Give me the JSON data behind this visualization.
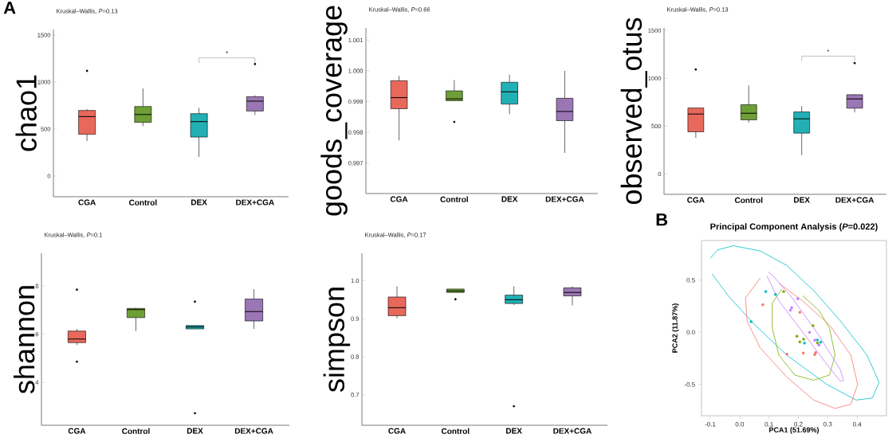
{
  "chart_data": [
    {
      "type": "box",
      "title": "Kruskal–Wallis, *P*=0.13",
      "ylabel": "chao1",
      "categories": [
        "CGA",
        "Control",
        "DEX",
        "DEX+CGA"
      ],
      "colors": [
        "#e8685c",
        "#6e9f36",
        "#22b0b5",
        "#9b76b4"
      ],
      "boxes": [
        {
          "low": 373,
          "q1": 444,
          "median": 633,
          "q3": 698,
          "high": 712,
          "outliers": [
            1119
          ]
        },
        {
          "low": 531,
          "q1": 571,
          "median": 655,
          "q3": 740,
          "high": 932
        },
        {
          "low": 203,
          "q1": 415,
          "median": 579,
          "q3": 664,
          "high": 726
        },
        {
          "low": 650,
          "q1": 692,
          "median": 797,
          "q3": 845,
          "high": 859,
          "outliers": [
            1192
          ]
        }
      ],
      "ylim": [
        -220,
        1560
      ],
      "yticks": [
        0,
        500,
        1000,
        1500
      ],
      "annotations": [
        "A",
        "*"
      ]
    },
    {
      "type": "box",
      "title": "Kruskal–Wallis, *P*=0.66",
      "ylabel": "goods_coverage",
      "categories": [
        "CGA",
        "Control",
        "DEX",
        "DEX+CGA"
      ],
      "colors": [
        "#e8685c",
        "#6e9f36",
        "#22b0b5",
        "#9b76b4"
      ],
      "boxes": [
        {
          "low": 0.99774,
          "q1": 0.99877,
          "median": 0.99913,
          "q3": 0.99968,
          "high": 0.99984
        },
        {
          "low": 0.99903,
          "q1": 0.99903,
          "median": 0.99909,
          "q3": 0.99935,
          "high": 0.9997,
          "outliers": [
            0.99834
          ]
        },
        {
          "low": 0.99859,
          "q1": 0.99892,
          "median": 0.99932,
          "q3": 0.99963,
          "high": 0.99988
        },
        {
          "low": 0.99733,
          "q1": 0.99838,
          "median": 0.99868,
          "q3": 0.99911,
          "high": 1.0
        }
      ],
      "ylim": [
        0.99601,
        1.0014
      ],
      "yticks": [
        {
          "value": 0.997,
          "label": "0.997"
        },
        {
          "value": 0.998,
          "label": "0.998"
        },
        {
          "value": 0.999,
          "label": "0.999"
        },
        {
          "value": 1.0,
          "label": "1.000"
        },
        {
          "value": 1.001,
          "label": "1.001"
        }
      ]
    },
    {
      "type": "box",
      "title": "Kruskal–Wallis, *P*=0.13",
      "ylabel": "observed_otus",
      "categories": [
        "CGA",
        "Control",
        "DEX",
        "DEX+CGA"
      ],
      "colors": [
        "#e8685c",
        "#6e9f36",
        "#22b0b5",
        "#9b76b4"
      ],
      "boxes": [
        {
          "low": 377,
          "q1": 441,
          "median": 627,
          "q3": 690,
          "high": 690,
          "outliers": [
            1093
          ]
        },
        {
          "low": 538,
          "q1": 566,
          "median": 635,
          "q3": 724,
          "high": 926
        },
        {
          "low": 197,
          "q1": 427,
          "median": 577,
          "q3": 649,
          "high": 710
        },
        {
          "low": 644,
          "q1": 688,
          "median": 785,
          "q3": 829,
          "high": 835,
          "outliers": [
            1159
          ]
        }
      ],
      "ylim": [
        -213,
        1528
      ],
      "yticks": [
        0,
        500,
        1000,
        1500
      ],
      "annotations": [
        "*"
      ]
    },
    {
      "type": "box",
      "title": "Kruskal–Wallis, *P*=0.1",
      "ylabel": "shannon",
      "categories": [
        "CGA",
        "Control",
        "DEX",
        "DEX+CGA"
      ],
      "colors": [
        "#e8685c",
        "#6e9f36",
        "#22b0b5",
        "#9b76b4"
      ],
      "boxes": [
        {
          "low": 5.55,
          "q1": 5.65,
          "median": 5.8,
          "q3": 6.13,
          "high": 6.22,
          "outliers": [
            7.85,
            4.86
          ]
        },
        {
          "low": 6.13,
          "q1": 6.69,
          "median": 7.02,
          "q3": 7.07,
          "high": 7.1
        },
        {
          "low": 6.22,
          "q1": 6.22,
          "median": 6.3,
          "q3": 6.36,
          "high": 6.36,
          "outliers": [
            7.35,
            2.72
          ]
        },
        {
          "low": 6.22,
          "q1": 6.55,
          "median": 6.94,
          "q3": 7.46,
          "high": 7.87
        }
      ],
      "ylim": [
        2.22,
        9.36
      ],
      "yticks": [
        4,
        6,
        8
      ]
    },
    {
      "type": "box",
      "title": "Kruskal–Wallis, *P*=0.17",
      "ylabel": "simpson",
      "categories": [
        "CGA",
        "Control",
        "DEX",
        "DEX+CGA"
      ],
      "colors": [
        "#e8685c",
        "#6e9f36",
        "#22b0b5",
        "#9b76b4"
      ],
      "boxes": [
        {
          "low": 0.901,
          "q1": 0.908,
          "median": 0.929,
          "q3": 0.957,
          "high": 0.985
        },
        {
          "low": 0.969,
          "q1": 0.969,
          "median": 0.973,
          "q3": 0.978,
          "high": 0.978,
          "outliers": [
            0.951
          ]
        },
        {
          "low": 0.936,
          "q1": 0.94,
          "median": 0.95,
          "q3": 0.962,
          "high": 0.985,
          "outliers": [
            0.67
          ]
        },
        {
          "low": 0.935,
          "q1": 0.96,
          "median": 0.969,
          "q3": 0.981,
          "high": 0.985
        }
      ],
      "ylim": [
        0.62,
        1.072
      ],
      "yticks": [
        {
          "value": 0.7,
          "label": "0.7"
        },
        {
          "value": 0.8,
          "label": "0.8"
        },
        {
          "value": 0.9,
          "label": "0.9"
        },
        {
          "value": 1.0,
          "label": "1.0"
        }
      ]
    },
    {
      "type": "scatter",
      "title": "Principal Component Analysis (*P*=0.022)",
      "xlabel": "PCA1 (51.69%)",
      "ylabel": "PCA2 (11.87%)",
      "annotations": [
        "B"
      ],
      "xlim": [
        -0.13,
        0.5
      ],
      "ylim": [
        -0.8,
        0.88
      ],
      "xticks": [
        {
          "value": -0.1,
          "label": "-0.1"
        },
        {
          "value": 0,
          "label": "0.0"
        },
        {
          "value": 0.1,
          "label": "0.1"
        },
        {
          "value": 0.2,
          "label": "0.2"
        },
        {
          "value": 0.3,
          "label": "0.3"
        },
        {
          "value": 0.4,
          "label": "0.4"
        }
      ],
      "yticks": [
        {
          "value": -0.5,
          "label": "-0.5"
        },
        {
          "value": 0,
          "label": "0.0"
        },
        {
          "value": 0.5,
          "label": "0.5"
        }
      ],
      "series": [
        {
          "type": "line",
          "color": "#00bfc4",
          "x": [
            -0.1,
            -0.075,
            -0.021,
            0.07,
            0.161,
            0.252,
            0.343,
            0.434,
            0.475,
            0.452,
            0.397,
            0.297,
            0.161,
            0.052,
            -0.039,
            -0.094
          ],
          "values": [
            0.71,
            0.79,
            0.83,
            0.78,
            0.64,
            0.4,
            0.11,
            -0.22,
            -0.48,
            -0.63,
            -0.65,
            -0.5,
            -0.22,
            0.07,
            0.35,
            0.56
          ]
        },
        {
          "type": "line",
          "color": "#f8766d",
          "x": [
            0.07,
            0.02,
            0.025,
            0.07,
            0.161,
            0.252,
            0.325,
            0.379,
            0.402,
            0.379,
            0.306,
            0.215,
            0.134
          ],
          "values": [
            0.52,
            0.33,
            0.11,
            -0.15,
            -0.43,
            -0.65,
            -0.73,
            -0.69,
            -0.5,
            -0.22,
            0.07,
            0.3,
            0.47
          ]
        },
        {
          "type": "line",
          "color": "#7cae00",
          "x": [
            0.143,
            0.111,
            0.111,
            0.134,
            0.188,
            0.252,
            0.306,
            0.325,
            0.306,
            0.27,
            0.215
          ],
          "values": [
            0.41,
            0.28,
            0.04,
            -0.22,
            -0.41,
            -0.46,
            -0.41,
            -0.22,
            0.04,
            0.21,
            0.35
          ]
        },
        {
          "type": "line",
          "color": "#c77cff",
          "x": [
            0.097,
            0.111,
            0.179,
            0.27,
            0.343,
            0.354,
            0.343,
            0.306,
            0.215,
            0.134,
            0.093
          ],
          "values": [
            0.58,
            0.55,
            0.33,
            -0.03,
            -0.36,
            -0.46,
            -0.47,
            -0.34,
            0.0,
            0.3,
            0.54
          ]
        },
        {
          "marker": "circle",
          "color": "#f8766d",
          "x": [
            0.079,
            0.205,
            0.161,
            0.217,
            0.259,
            0.256
          ],
          "values": [
            0.265,
            0.192,
            -0.209,
            -0.199,
            -0.194,
            -0.213
          ]
        },
        {
          "marker": "circle",
          "color": "#00bfc4",
          "x": [
            0.039,
            0.089,
            0.122,
            0.221,
            0.265,
            0.276
          ],
          "values": [
            0.102,
            0.391,
            0.363,
            -0.104,
            -0.073,
            -0.095
          ]
        },
        {
          "marker": "circle",
          "color": "#7cae00",
          "x": [
            0.15,
            0.195,
            0.205,
            0.218,
            0.25,
            0.265
          ],
          "values": [
            0.391,
            -0.038,
            -0.092,
            -0.066,
            0.064,
            -0.102
          ]
        },
        {
          "marker": "circle",
          "color": "#c77cff",
          "x": [
            0.198,
            0.173,
            0.177,
            0.238,
            0.256,
            0.27
          ],
          "values": [
            0.322,
            0.211,
            0.235,
            0.0,
            -0.076,
            -0.123
          ]
        }
      ]
    }
  ]
}
